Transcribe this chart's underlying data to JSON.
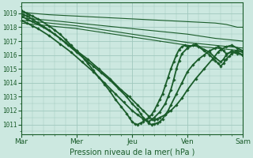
{
  "bg_color": "#cce8e0",
  "grid_color": "#a0c8be",
  "line_color": "#1a5c2a",
  "xlabel": "Pression niveau de la mer( hPa )",
  "xtick_labels": [
    "Mar",
    "Mer",
    "Jeu",
    "Ven",
    "Sam"
  ],
  "ytick_min": 1011,
  "ytick_max": 1019,
  "xlim": [
    0.0,
    4.0
  ],
  "ylim": [
    1010.3,
    1019.8
  ],
  "xtick_positions": [
    0.0,
    1.0,
    2.0,
    3.0,
    4.0
  ],
  "lines": [
    {
      "x": [
        0.0,
        0.2,
        0.5,
        1.0,
        1.5,
        2.0,
        2.5,
        3.0,
        3.5,
        3.7,
        3.8,
        3.9,
        4.0
      ],
      "y": [
        1019.1,
        1019.0,
        1018.9,
        1018.8,
        1018.7,
        1018.6,
        1018.5,
        1018.4,
        1018.3,
        1018.2,
        1018.1,
        1018.0,
        1018.0
      ],
      "marker": null,
      "markersize": 0,
      "linewidth": 0.8
    },
    {
      "x": [
        0.0,
        0.2,
        0.5,
        1.0,
        1.5,
        2.0,
        2.5,
        3.0,
        3.5,
        4.0
      ],
      "y": [
        1018.7,
        1018.6,
        1018.5,
        1018.3,
        1018.1,
        1017.9,
        1017.7,
        1017.5,
        1017.2,
        1017.0
      ],
      "marker": null,
      "markersize": 0,
      "linewidth": 0.8
    },
    {
      "x": [
        0.0,
        0.5,
        1.0,
        1.5,
        2.0,
        2.5,
        3.0,
        3.5,
        4.0
      ],
      "y": [
        1018.5,
        1018.3,
        1018.1,
        1017.8,
        1017.5,
        1017.2,
        1016.9,
        1016.7,
        1016.5
      ],
      "marker": null,
      "markersize": 0,
      "linewidth": 0.8
    },
    {
      "x": [
        0.0,
        0.5,
        1.0,
        1.5,
        2.0,
        2.5,
        3.0,
        3.5,
        4.0
      ],
      "y": [
        1018.3,
        1018.1,
        1017.9,
        1017.6,
        1017.3,
        1017.0,
        1016.7,
        1016.5,
        1016.3
      ],
      "marker": ".",
      "markersize": 1.5,
      "linewidth": 0.8
    },
    {
      "x": [
        0.0,
        0.05,
        0.1,
        0.2,
        0.3,
        0.5,
        0.7,
        0.85,
        1.0,
        1.15,
        1.3,
        1.45,
        1.6,
        1.75,
        1.9,
        2.0,
        2.1,
        2.15,
        2.2,
        2.25,
        2.3,
        2.35,
        2.4,
        2.45,
        2.5,
        2.55,
        2.6,
        2.65,
        2.7,
        2.8,
        2.9,
        3.0,
        3.1,
        3.2,
        3.3,
        3.4,
        3.5,
        3.55,
        3.6,
        3.65,
        3.7,
        3.8,
        3.9,
        4.0
      ],
      "y": [
        1019.0,
        1018.9,
        1018.8,
        1018.6,
        1018.3,
        1017.8,
        1017.2,
        1016.7,
        1016.2,
        1015.7,
        1015.2,
        1014.7,
        1014.2,
        1013.6,
        1013.0,
        1012.5,
        1012.1,
        1011.8,
        1011.5,
        1011.3,
        1011.1,
        1011.0,
        1011.05,
        1011.1,
        1011.2,
        1011.4,
        1011.7,
        1012.0,
        1012.4,
        1013.2,
        1014.0,
        1014.8,
        1015.3,
        1015.7,
        1016.0,
        1016.3,
        1016.5,
        1016.6,
        1016.5,
        1016.3,
        1016.1,
        1016.2,
        1016.3,
        1016.2
      ],
      "marker": "D",
      "markersize": 1.8,
      "linewidth": 1.3
    },
    {
      "x": [
        0.0,
        0.1,
        0.2,
        0.4,
        0.6,
        0.8,
        1.0,
        1.2,
        1.4,
        1.6,
        1.8,
        1.95,
        2.1,
        2.2,
        2.3,
        2.35,
        2.4,
        2.45,
        2.5,
        2.6,
        2.7,
        2.8,
        2.9,
        3.0,
        3.15,
        3.3,
        3.45,
        3.55,
        3.6,
        3.7,
        3.8,
        3.9,
        4.0
      ],
      "y": [
        1018.8,
        1018.6,
        1018.4,
        1018.0,
        1017.5,
        1016.9,
        1016.3,
        1015.7,
        1015.0,
        1014.3,
        1013.5,
        1013.0,
        1012.4,
        1012.0,
        1011.6,
        1011.4,
        1011.3,
        1011.4,
        1011.5,
        1011.7,
        1012.0,
        1012.4,
        1012.9,
        1013.5,
        1014.3,
        1015.0,
        1015.7,
        1016.2,
        1016.4,
        1016.6,
        1016.7,
        1016.5,
        1016.3
      ],
      "marker": "D",
      "markersize": 1.8,
      "linewidth": 1.3
    },
    {
      "x": [
        0.0,
        0.1,
        0.2,
        0.3,
        0.5,
        0.7,
        0.9,
        1.1,
        1.3,
        1.5,
        1.7,
        1.85,
        2.0,
        2.1,
        2.2,
        2.3,
        2.4,
        2.5,
        2.6,
        2.65,
        2.7,
        2.75,
        2.8,
        2.85,
        2.9,
        3.0,
        3.1,
        3.2,
        3.3,
        3.4,
        3.5,
        3.6,
        3.65,
        3.7,
        3.8,
        3.9,
        4.0
      ],
      "y": [
        1018.5,
        1018.3,
        1018.1,
        1017.9,
        1017.4,
        1016.8,
        1016.2,
        1015.5,
        1014.8,
        1014.0,
        1013.2,
        1012.6,
        1012.0,
        1011.7,
        1011.4,
        1011.2,
        1011.5,
        1011.9,
        1012.5,
        1013.0,
        1013.5,
        1014.2,
        1015.0,
        1015.6,
        1016.1,
        1016.5,
        1016.7,
        1016.6,
        1016.4,
        1016.2,
        1015.8,
        1015.5,
        1015.7,
        1016.0,
        1016.3,
        1016.1,
        1016.0
      ],
      "marker": "D",
      "markersize": 1.8,
      "linewidth": 1.3
    },
    {
      "x": [
        0.0,
        0.05,
        0.1,
        0.15,
        0.2,
        0.3,
        0.5,
        0.6,
        0.7,
        0.8,
        0.9,
        1.0,
        1.1,
        1.2,
        1.3,
        1.4,
        1.5,
        1.6,
        1.7,
        1.8,
        1.9,
        1.95,
        2.0,
        2.05,
        2.1,
        2.15,
        2.2,
        2.25,
        2.3,
        2.35,
        2.4,
        2.45,
        2.5,
        2.55,
        2.6,
        2.65,
        2.7,
        2.75,
        2.8,
        2.85,
        2.9,
        2.95,
        3.0,
        3.1,
        3.15,
        3.2,
        3.3,
        3.4,
        3.5,
        3.55,
        3.6,
        3.65,
        3.7,
        3.75,
        3.8,
        3.85,
        3.9,
        4.0
      ],
      "y": [
        1019.2,
        1019.1,
        1019.0,
        1018.9,
        1018.8,
        1018.6,
        1018.1,
        1017.8,
        1017.5,
        1017.1,
        1016.7,
        1016.3,
        1015.9,
        1015.4,
        1014.9,
        1014.4,
        1013.9,
        1013.4,
        1012.8,
        1012.3,
        1011.8,
        1011.5,
        1011.2,
        1011.05,
        1011.0,
        1011.1,
        1011.2,
        1011.35,
        1011.5,
        1011.7,
        1012.0,
        1012.4,
        1012.8,
        1013.2,
        1013.8,
        1014.4,
        1015.0,
        1015.5,
        1016.0,
        1016.4,
        1016.6,
        1016.7,
        1016.6,
        1016.7,
        1016.8,
        1016.6,
        1016.3,
        1016.0,
        1015.6,
        1015.4,
        1015.2,
        1015.4,
        1015.7,
        1015.9,
        1016.1,
        1016.2,
        1016.2,
        1016.0
      ],
      "marker": "D",
      "markersize": 1.8,
      "linewidth": 1.3
    }
  ]
}
